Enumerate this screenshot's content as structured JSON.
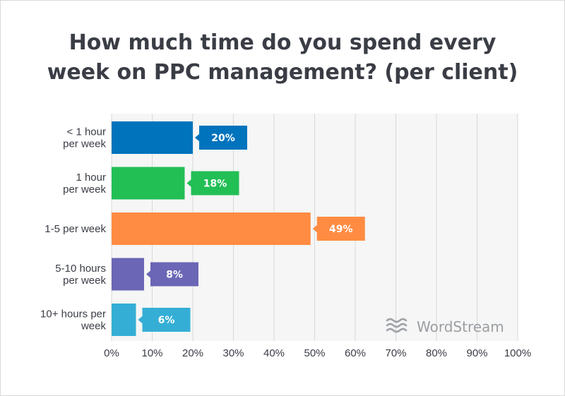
{
  "title_lines": [
    "How much time do you spend every",
    "week on PPC management? (per client)"
  ],
  "brand": {
    "name": "WordStream",
    "color": "#a0a3a8"
  },
  "chart_data": {
    "type": "bar",
    "orientation": "horizontal",
    "title": "How much time do you spend every week on PPC management? (per client)",
    "categories": [
      [
        "< 1 hour",
        "per week"
      ],
      [
        "1 hour",
        "per week"
      ],
      [
        "1-5 per week"
      ],
      [
        "5-10 hours",
        "per week"
      ],
      [
        "10+ hours per",
        "week"
      ]
    ],
    "values": [
      20,
      18,
      49,
      8,
      6
    ],
    "value_labels": [
      "20%",
      "18%",
      "49%",
      "8%",
      "6%"
    ],
    "colors": [
      "#0073bd",
      "#22bf55",
      "#ff8c42",
      "#6b66b5",
      "#35aed6"
    ],
    "xlim": [
      0,
      100
    ],
    "xticks": [
      0,
      10,
      20,
      30,
      40,
      50,
      60,
      70,
      80,
      90,
      100
    ],
    "xtick_labels": [
      "0%",
      "10%",
      "20%",
      "30%",
      "40%",
      "50%",
      "60%",
      "70%",
      "80%",
      "90%",
      "100%"
    ],
    "grid": true
  }
}
